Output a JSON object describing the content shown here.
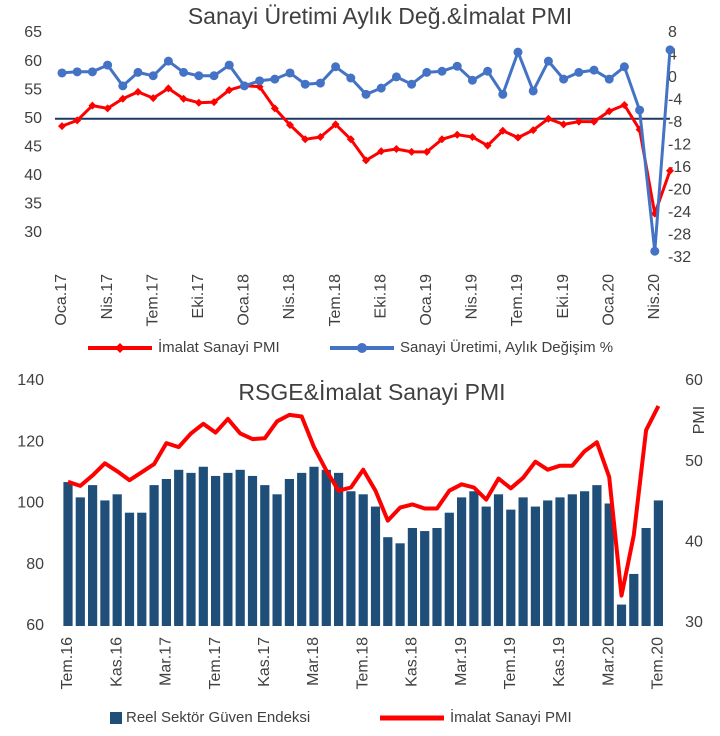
{
  "chart_data": [
    {
      "type": "line",
      "title": "Sanayi Üretimi  Aylık Değ.&İmalat PMI",
      "categories": [
        "Oca.17",
        null,
        null,
        "Nis.17",
        null,
        null,
        "Tem.17",
        null,
        null,
        "Eki.17",
        null,
        null,
        "Oca.18",
        null,
        null,
        "Nis.18",
        null,
        null,
        "Tem.18",
        null,
        null,
        "Eki.18",
        null,
        null,
        "Oca.19",
        null,
        null,
        "Nis.19",
        null,
        null,
        "Tem.19",
        null,
        null,
        "Eki.19",
        null,
        null,
        "Oca.20",
        null,
        null,
        "Nis.20",
        null
      ],
      "series": [
        {
          "name": "İmalat Sanayi PMI",
          "color": "#ff0000",
          "marker": "diamond",
          "values": [
            48.7,
            49.7,
            52.3,
            51.8,
            53.5,
            54.7,
            53.6,
            55.3,
            53.5,
            52.8,
            52.9,
            55.0,
            55.8,
            55.6,
            51.8,
            48.9,
            46.4,
            46.8,
            49.0,
            46.4,
            42.7,
            44.3,
            44.7,
            44.2,
            44.2,
            46.4,
            47.2,
            46.8,
            45.3,
            47.9,
            46.7,
            48.0,
            50.0,
            49.0,
            49.5,
            49.5,
            51.3,
            52.4,
            48.1,
            33.4,
            40.9
          ]
        },
        {
          "name": "Sanayi Üretimi, Aylık Değişim %",
          "color": "#4472c4",
          "marker": "circle",
          "axis": "y2",
          "values": [
            0.9,
            1.1,
            1.1,
            2.3,
            -1.4,
            1.0,
            0.4,
            3.0,
            1.0,
            0.4,
            0.4,
            2.3,
            -1.4,
            -0.5,
            -0.2,
            0.9,
            -1.1,
            -0.9,
            2.0,
            0.0,
            -2.9,
            -1.8,
            0.2,
            -1.1,
            1.0,
            1.2,
            2.1,
            -0.4,
            1.2,
            -2.9,
            4.6,
            -2.3,
            3.0,
            -0.2,
            1.0,
            1.4,
            -0.2,
            2.0,
            -5.7,
            -30.8,
            5.0
          ]
        }
      ],
      "ylim": [
        30,
        65
      ],
      "yticks": [
        30,
        35,
        40,
        45,
        50,
        55,
        60,
        65
      ],
      "y2lim": [
        -32,
        8
      ],
      "y2ticks": [
        -32,
        -28,
        -24,
        -20,
        -16,
        -12,
        -8,
        -4,
        0,
        4,
        8
      ],
      "reference_line": 50,
      "reference_color": "#1f3864"
    },
    {
      "type": "combo",
      "title": "RSGE&İmalat Sanayi PMI",
      "y2label": "PMI",
      "categories": [
        "Tem.16",
        null,
        null,
        null,
        "Kas.16",
        null,
        null,
        null,
        "Mar.17",
        null,
        null,
        null,
        "Tem.17",
        null,
        null,
        null,
        "Kas.17",
        null,
        null,
        null,
        "Mar.18",
        null,
        null,
        null,
        "Tem.18",
        null,
        null,
        null,
        "Kas.18",
        null,
        null,
        null,
        "Mar.19",
        null,
        null,
        null,
        "Tem.19",
        null,
        null,
        null,
        "Kas.19",
        null,
        null,
        null,
        "Mar.20",
        null,
        null,
        null,
        "Tem.20"
      ],
      "series": [
        {
          "name": "Reel Sektör Güven Endeksi",
          "color": "#1f4e79",
          "kind": "bar",
          "values": [
            107,
            102,
            106,
            101,
            103,
            97,
            97,
            106,
            108,
            111,
            110,
            112,
            109,
            110,
            111,
            109,
            106,
            103,
            108,
            110,
            112,
            111,
            110,
            104,
            103,
            99,
            89,
            87,
            92,
            91,
            92,
            97,
            102,
            104,
            99,
            103,
            98,
            102,
            99,
            101,
            102,
            103,
            104,
            106,
            100,
            67,
            77,
            92,
            101
          ]
        },
        {
          "name": "İmalat Sanayi PMI",
          "color": "#ff0000",
          "kind": "line",
          "axis": "y2",
          "values": [
            47.5,
            47.0,
            48.3,
            49.8,
            48.8,
            47.7,
            48.7,
            49.7,
            52.3,
            51.8,
            53.5,
            54.7,
            53.6,
            55.3,
            53.5,
            52.8,
            52.9,
            55.0,
            55.8,
            55.6,
            51.8,
            48.9,
            46.4,
            46.8,
            49.0,
            46.4,
            42.7,
            44.3,
            44.7,
            44.2,
            44.2,
            46.4,
            47.2,
            46.8,
            45.3,
            47.9,
            46.7,
            48.0,
            50.0,
            49.0,
            49.5,
            49.5,
            51.3,
            52.4,
            48.1,
            33.4,
            40.9,
            53.9,
            56.9
          ]
        }
      ],
      "ylim": [
        60,
        140
      ],
      "yticks": [
        60,
        80,
        100,
        120,
        140
      ],
      "y2lim": [
        30,
        60
      ],
      "y2ticks": [
        30,
        40,
        50,
        60
      ]
    }
  ]
}
